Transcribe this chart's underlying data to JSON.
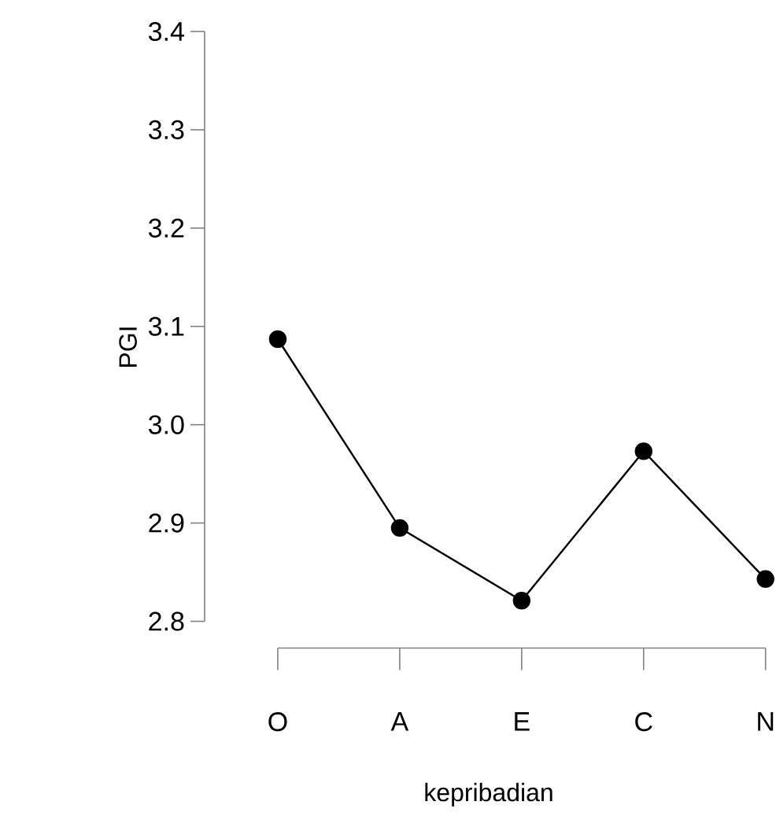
{
  "chart_data": {
    "type": "line",
    "xlabel": "kepribadian",
    "ylabel": "PGI",
    "categories": [
      "O",
      "A",
      "E",
      "C",
      "N"
    ],
    "values": [
      3.087,
      2.895,
      2.821,
      2.973,
      2.843
    ],
    "color": "#000000",
    "marker": "circle",
    "line_style": "solid",
    "ylim": [
      2.8,
      3.4
    ],
    "yticks": [
      2.8,
      2.9,
      {
        "value": 3,
        "label": "3.0"
      },
      3.1,
      3.2,
      3.3,
      3.4
    ]
  }
}
